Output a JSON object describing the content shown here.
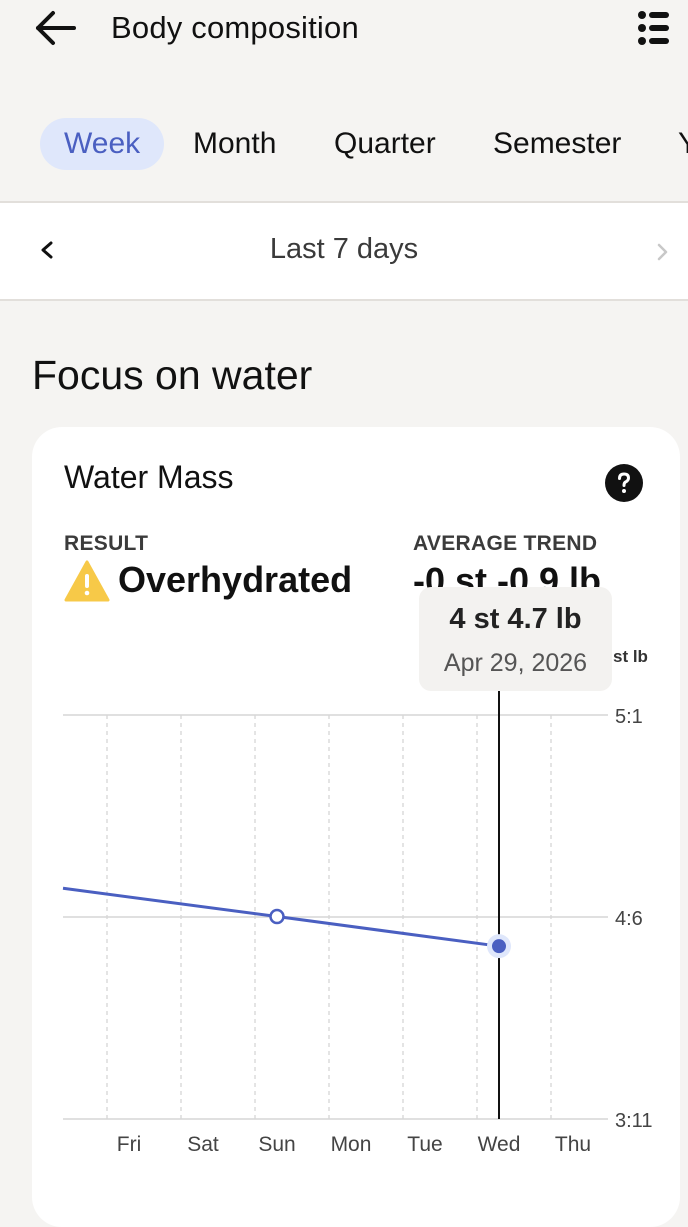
{
  "header": {
    "title": "Body composition"
  },
  "tabs": [
    {
      "label": "Week",
      "active": true
    },
    {
      "label": "Month",
      "active": false
    },
    {
      "label": "Quarter",
      "active": false
    },
    {
      "label": "Semester",
      "active": false
    },
    {
      "label": "Y",
      "active": false
    }
  ],
  "range": {
    "label": "Last 7 days"
  },
  "section": {
    "title": "Focus on water"
  },
  "card": {
    "title": "Water Mass",
    "result_label": "RESULT",
    "result_value": "Overhydrated",
    "trend_label": "AVERAGE TREND",
    "trend_value": "-0 st -0.9 lb"
  },
  "tooltip": {
    "value": "4 st 4.7 lb",
    "date": "Apr 29, 2026"
  },
  "colors": {
    "accent": "#4a5fc1",
    "tab_bg": "#dfe7fb",
    "warning": "#f7c948"
  },
  "chart_data": {
    "type": "line",
    "unit": "st lb",
    "y_ticks": [
      {
        "label": "3:11",
        "value": 3.7857
      },
      {
        "label": "4:6",
        "value": 4.4286
      },
      {
        "label": "5:1",
        "value": 5.0714
      }
    ],
    "ylim": [
      3.7857,
      5.0714
    ],
    "x_labels": [
      "Fri",
      "Sat",
      "Sun",
      "Mon",
      "Tue",
      "Wed",
      "Thu"
    ],
    "series": [
      {
        "points": [
          {
            "x": "Thu",
            "y": 4.52
          },
          {
            "x": "Sun",
            "y": 4.43
          },
          {
            "x": "Wed",
            "y": 4.3357
          }
        ]
      }
    ],
    "highlight": {
      "x": "Wed",
      "y": 4.3357
    }
  }
}
